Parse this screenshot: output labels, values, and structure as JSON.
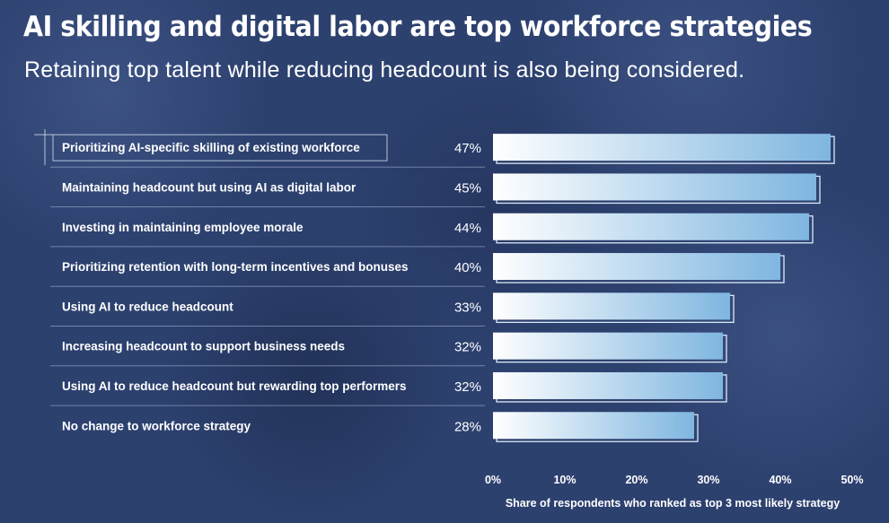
{
  "header": {
    "title": "AI skilling and digital labor are top workforce strategies",
    "subtitle": "Retaining top talent while reducing headcount is also being considered."
  },
  "colors": {
    "background": "#2d416f",
    "bar_light": "#ffffff",
    "bar_dark": "#7fb6e0",
    "bar_outline": "#dbe9f7"
  },
  "chart_data": {
    "type": "bar",
    "orientation": "horizontal",
    "categories": [
      "Prioritizing AI-specific skilling of existing workforce",
      "Maintaining headcount but using AI as digital labor",
      "Investing in maintaining employee morale",
      "Prioritizing retention with long-term incentives and bonuses",
      "Using AI to reduce headcount",
      "Increasing headcount to support business needs",
      "Using AI to reduce headcount but rewarding top performers",
      "No change to workforce strategy"
    ],
    "values": [
      47,
      45,
      44,
      40,
      33,
      32,
      32,
      28
    ],
    "value_labels": [
      "47%",
      "45%",
      "44%",
      "40%",
      "33%",
      "32%",
      "32%",
      "28%"
    ],
    "xlim": [
      0,
      50
    ],
    "x_ticks": [
      0,
      10,
      20,
      30,
      40,
      50
    ],
    "x_tick_labels": [
      "0%",
      "10%",
      "20%",
      "30%",
      "40%",
      "50%"
    ],
    "xlabel": "Share of respondents who ranked as top 3 most likely strategy",
    "ylabel": "",
    "grid": false,
    "highlighted_category_index": 0
  }
}
